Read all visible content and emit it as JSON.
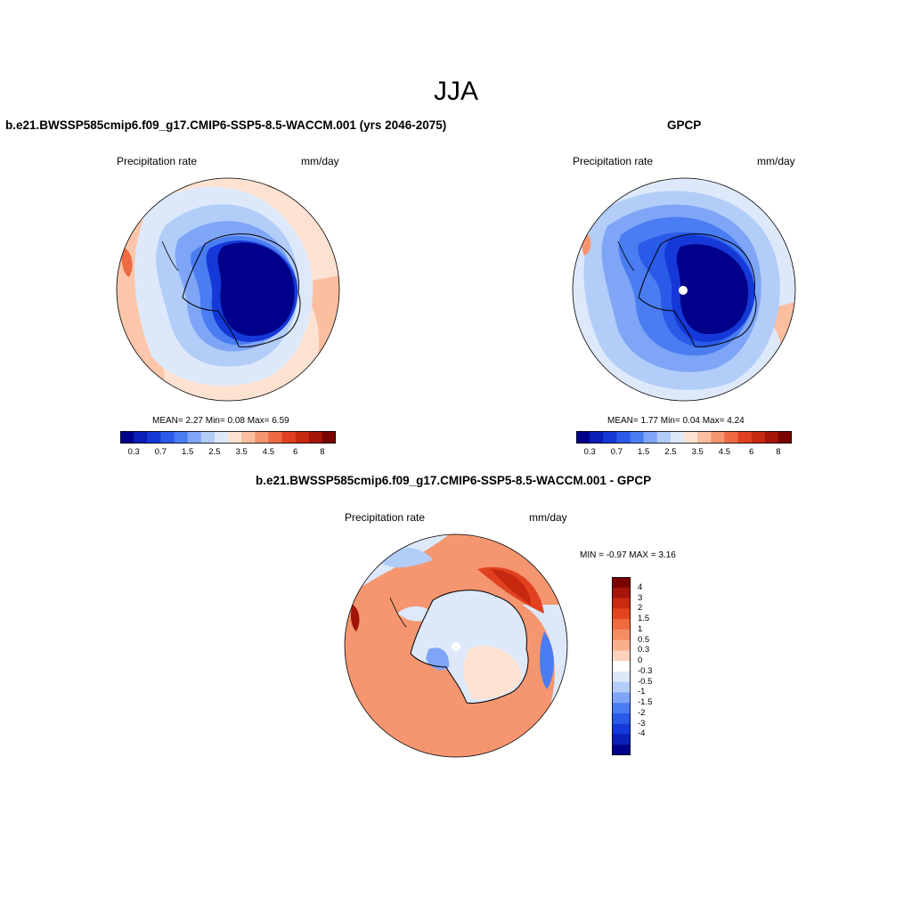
{
  "title": "JJA",
  "panels": {
    "model": {
      "title": "b.e21.BWSSP585cmip6.f09_g17.CMIP6-SSP5-8.5-WACCM.001 (yrs 2046-2075)",
      "variable": "Precipitation rate",
      "units": "mm/day",
      "stats": "MEAN=   2.27  Min=   0.08  Max=   6.59"
    },
    "obs": {
      "title": "GPCP",
      "variable": "Precipitation rate",
      "units": "mm/day",
      "stats": "MEAN=   1.77  Min=   0.04  Max=   4.24"
    },
    "diff": {
      "title": "b.e21.BWSSP585cmip6.f09_g17.CMIP6-SSP5-8.5-WACCM.001 - GPCP",
      "variable": "Precipitation rate",
      "units": "mm/day",
      "stats": "MIN =  -0.97 MAX =   3.16"
    }
  },
  "colorbar_main": {
    "colors": [
      "#00008a",
      "#0a1fb5",
      "#1439d8",
      "#2a5ae8",
      "#4a7cf2",
      "#7fa5f7",
      "#b3cdf9",
      "#dde9fb",
      "#fde2d2",
      "#fbbfa0",
      "#f59670",
      "#ee6a42",
      "#e0421f",
      "#c72810",
      "#a21508",
      "#7a0400"
    ],
    "tick_labels": [
      "0.3",
      "0.7",
      "1.5",
      "2.5",
      "3.5",
      "4.5",
      "6",
      "8"
    ]
  },
  "colorbar_diff": {
    "colors": [
      "#7a0400",
      "#a51509",
      "#cb2a10",
      "#e4441d",
      "#ef6a3e",
      "#f48d62",
      "#f8b08b",
      "#fbd3bd",
      "#ffffff",
      "#dde9fb",
      "#b3cdf9",
      "#7fa5f7",
      "#4a7cf2",
      "#2a5ae8",
      "#1439d8",
      "#0a1fb5",
      "#00008a"
    ],
    "tick_labels": [
      "4",
      "3",
      "2",
      "1.5",
      "1",
      "0.5",
      "0.3",
      "0",
      "-0.3",
      "-0.5",
      "-1",
      "-1.5",
      "-2",
      "-3",
      "-4"
    ]
  }
}
